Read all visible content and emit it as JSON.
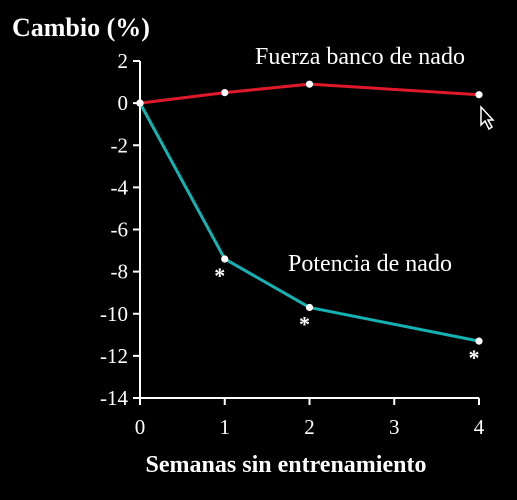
{
  "chart_data": {
    "type": "line",
    "ylabel": "Cambio (%)",
    "xlabel": "Semanas sin entrenamiento",
    "x": [
      0,
      1,
      2,
      3,
      4
    ],
    "x_ticks": [
      "0",
      "1",
      "2",
      "3",
      "4"
    ],
    "y_ticks": [
      "2",
      "0",
      "-2",
      "-4",
      "-6",
      "-8",
      "-10",
      "-12",
      "-14"
    ],
    "ylim": [
      -14,
      2
    ],
    "xlim": [
      0,
      4
    ],
    "grid": false,
    "series": [
      {
        "name": "Fuerza banco de nado",
        "color": "#e0192a",
        "points": [
          [
            0,
            0
          ],
          [
            1,
            0.5
          ],
          [
            2,
            0.9
          ],
          [
            4,
            0.4
          ]
        ],
        "significant": [
          false,
          false,
          false,
          false
        ]
      },
      {
        "name": "Potencia de nado",
        "color": "#13b3b3",
        "points": [
          [
            0,
            0
          ],
          [
            1,
            -7.4
          ],
          [
            2,
            -9.7
          ],
          [
            4,
            -11.3
          ]
        ],
        "significant": [
          false,
          true,
          true,
          true
        ]
      }
    ],
    "significance_marker": "*"
  }
}
